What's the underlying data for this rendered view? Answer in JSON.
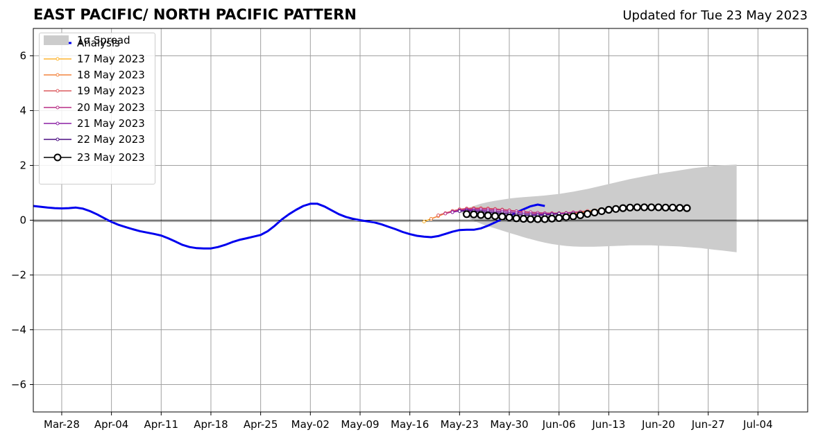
{
  "header": {
    "title": "EAST PACIFIC/ NORTH PACIFIC PATTERN",
    "updated": "Updated for Tue 23 May 2023"
  },
  "chart_data": {
    "type": "line",
    "title": "EAST PACIFIC/ NORTH PACIFIC PATTERN",
    "subtitle": "Updated for Tue 23 May 2023",
    "x_axis": {
      "type": "date",
      "range": [
        "2023-03-24",
        "2023-07-11"
      ],
      "ticks": [
        "2023-03-28",
        "2023-04-04",
        "2023-04-11",
        "2023-04-18",
        "2023-04-25",
        "2023-05-02",
        "2023-05-09",
        "2023-05-16",
        "2023-05-23",
        "2023-05-30",
        "2023-06-06",
        "2023-06-13",
        "2023-06-20",
        "2023-06-27",
        "2023-07-04"
      ],
      "tick_labels": [
        "Mar-28",
        "Apr-04",
        "Apr-11",
        "Apr-18",
        "Apr-25",
        "May-02",
        "May-09",
        "May-16",
        "May-23",
        "May-30",
        "Jun-06",
        "Jun-13",
        "Jun-20",
        "Jun-27",
        "Jul-04"
      ]
    },
    "y_axis": {
      "range": [
        -7,
        7
      ],
      "ticks": [
        -6,
        -4,
        -2,
        0,
        2,
        4,
        6
      ],
      "tick_labels": [
        "−6",
        "−4",
        "−2",
        "0",
        "2",
        "4",
        "6"
      ]
    },
    "grid": true,
    "zero_line": true,
    "legend_placement": "upper-left",
    "analysis": {
      "name": "Analysis",
      "color": "#0000ee",
      "start": "2023-03-24",
      "values": [
        0.52,
        0.49,
        0.46,
        0.44,
        0.43,
        0.44,
        0.46,
        0.42,
        0.33,
        0.21,
        0.07,
        -0.06,
        -0.17,
        -0.25,
        -0.33,
        -0.4,
        -0.45,
        -0.5,
        -0.56,
        -0.66,
        -0.78,
        -0.9,
        -0.98,
        -1.02,
        -1.03,
        -1.03,
        -0.98,
        -0.9,
        -0.8,
        -0.72,
        -0.66,
        -0.6,
        -0.54,
        -0.4,
        -0.2,
        0.03,
        0.22,
        0.38,
        0.52,
        0.6,
        0.6,
        0.5,
        0.36,
        0.22,
        0.12,
        0.05,
        0.0,
        -0.04,
        -0.08,
        -0.15,
        -0.24,
        -0.33,
        -0.43,
        -0.51,
        -0.57,
        -0.6,
        -0.62,
        -0.58,
        -0.5,
        -0.42,
        -0.36,
        -0.35,
        -0.35,
        -0.3,
        -0.2,
        -0.08,
        0.04,
        0.15,
        0.28,
        0.4,
        0.51,
        0.57,
        0.52
      ]
    },
    "forecasts": [
      {
        "name": "17 May 2023",
        "color": "#fdb42f",
        "start": "2023-05-18",
        "values": [
          -0.05,
          0.05,
          0.15,
          0.25,
          0.32,
          0.38,
          0.42,
          0.44,
          0.44,
          0.42,
          0.4,
          0.38,
          0.36,
          0.33,
          0.3,
          0.28,
          0.26,
          0.25,
          0.24,
          0.24,
          0.24,
          0.25,
          0.27,
          0.3,
          0.33,
          0.36,
          0.38,
          0.4,
          0.42,
          0.43,
          0.44,
          0.45,
          0.45,
          0.45,
          0.44
        ]
      },
      {
        "name": "18 May 2023",
        "color": "#f3843f",
        "start": "2023-05-19",
        "values": [
          0.05,
          0.15,
          0.25,
          0.33,
          0.38,
          0.42,
          0.44,
          0.44,
          0.43,
          0.41,
          0.39,
          0.36,
          0.33,
          0.3,
          0.28,
          0.26,
          0.25,
          0.24,
          0.24,
          0.25,
          0.27,
          0.3,
          0.33,
          0.36,
          0.38,
          0.4,
          0.42,
          0.43,
          0.44,
          0.45,
          0.45,
          0.44
        ]
      },
      {
        "name": "19 May 2023",
        "color": "#dc5a5f",
        "start": "2023-05-20",
        "values": [
          0.18,
          0.26,
          0.34,
          0.4,
          0.43,
          0.44,
          0.44,
          0.43,
          0.41,
          0.39,
          0.36,
          0.33,
          0.31,
          0.29,
          0.27,
          0.26,
          0.26,
          0.26,
          0.27,
          0.29,
          0.31,
          0.34
        ]
      },
      {
        "name": "20 May 2023",
        "color": "#b82f85",
        "start": "2023-05-21",
        "values": [
          0.24,
          0.31,
          0.37,
          0.4,
          0.41,
          0.41,
          0.4,
          0.39,
          0.37,
          0.35,
          0.33,
          0.31,
          0.29,
          0.27,
          0.26,
          0.25,
          0.25,
          0.26,
          0.28,
          0.3
        ]
      },
      {
        "name": "21 May 2023",
        "color": "#8a1fa4",
        "start": "2023-05-22",
        "values": [
          0.29,
          0.34,
          0.37,
          0.37,
          0.36,
          0.35,
          0.33,
          0.31,
          0.29,
          0.27,
          0.25,
          0.23,
          0.22,
          0.22,
          0.22,
          0.23,
          0.25,
          0.27
        ]
      },
      {
        "name": "22 May 2023",
        "color": "#4b0e82",
        "start": "2023-05-23",
        "values": [
          0.33,
          0.34,
          0.33,
          0.31,
          0.29,
          0.27,
          0.25,
          0.23,
          0.21,
          0.19,
          0.18,
          0.18,
          0.19,
          0.21,
          0.24
        ]
      }
    ],
    "current_forecast": {
      "name": "23 May 2023",
      "color": "#000000",
      "start": "2023-05-24",
      "values": [
        0.22,
        0.21,
        0.19,
        0.17,
        0.15,
        0.13,
        0.1,
        0.07,
        0.05,
        0.04,
        0.04,
        0.04,
        0.06,
        0.08,
        0.11,
        0.14,
        0.18,
        0.23,
        0.28,
        0.33,
        0.38,
        0.41,
        0.44,
        0.46,
        0.47,
        0.47,
        0.47,
        0.47,
        0.46,
        0.46,
        0.45,
        0.44
      ]
    },
    "spread": {
      "name": "1σ Spread",
      "color": "#cccccc",
      "start": "2023-05-23",
      "upper": [
        0.3,
        0.42,
        0.52,
        0.6,
        0.66,
        0.71,
        0.75,
        0.79,
        0.82,
        0.84,
        0.86,
        0.88,
        0.9,
        0.93,
        0.96,
        1.0,
        1.04,
        1.09,
        1.14,
        1.2,
        1.26,
        1.32,
        1.38,
        1.44,
        1.5,
        1.55,
        1.6,
        1.65,
        1.7,
        1.74,
        1.78,
        1.82,
        1.86,
        1.9,
        1.93,
        1.96,
        1.99,
        2.01,
        2.02,
        2.03
      ],
      "lower": [
        0.3,
        0.12,
        -0.02,
        -0.13,
        -0.22,
        -0.3,
        -0.38,
        -0.46,
        -0.54,
        -0.62,
        -0.69,
        -0.76,
        -0.82,
        -0.87,
        -0.91,
        -0.94,
        -0.96,
        -0.97,
        -0.97,
        -0.97,
        -0.96,
        -0.95,
        -0.94,
        -0.93,
        -0.92,
        -0.92,
        -0.92,
        -0.92,
        -0.93,
        -0.94,
        -0.95,
        -0.96,
        -0.98,
        -1.0,
        -1.02,
        -1.05,
        -1.08,
        -1.11,
        -1.14,
        -1.17
      ]
    }
  }
}
